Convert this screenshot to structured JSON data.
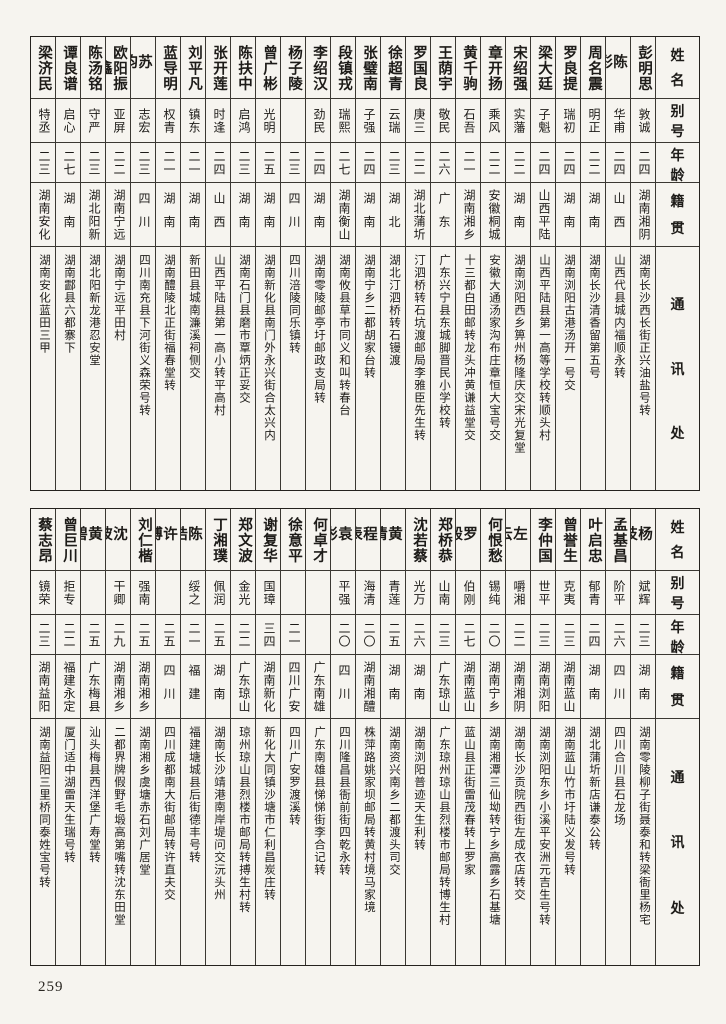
{
  "page_number": "259",
  "colors": {
    "paper": "#f6f4ef",
    "ink": "#1d1b18"
  },
  "column_headers": [
    "姓名",
    "别号",
    "年龄",
    "籍贯",
    "通讯处"
  ],
  "sections": [
    {
      "persons": [
        {
          "name": "彭明思",
          "alias": "敦诚",
          "age": "二四",
          "origin": "湖南湘阴",
          "address": "湖南长沙西长街正兴油盐号转"
        },
        {
          "name": "陈彩",
          "alias": "华甫",
          "age": "二四",
          "origin": "山西",
          "address": "山西代县城内福顺永转"
        },
        {
          "name": "周名震",
          "alias": "明正",
          "age": "二二",
          "origin": "湖南",
          "address": "湖南长沙清香留第五号"
        },
        {
          "name": "罗良提",
          "alias": "瑞初",
          "age": "二四",
          "origin": "湖南",
          "address": "湖南浏阳古港汤开一号交"
        },
        {
          "name": "梁大廷",
          "alias": "子魁",
          "age": "二四",
          "origin": "山西平陆",
          "address": "山西平陆县第一高等学校转顺头村"
        },
        {
          "name": "宋绍强",
          "alias": "实藩",
          "age": "二二",
          "origin": "湖南",
          "address": "湖南浏阳西乡箅州杨隆庆交宋光复堂"
        },
        {
          "name": "章开扬",
          "alias": "乘风",
          "age": "二二",
          "origin": "安徽桐城",
          "address": "安徽大通汤家沟布庄章恒大宝号交"
        },
        {
          "name": "黄千驹",
          "alias": "石吾",
          "age": "二一",
          "origin": "湖南湘乡",
          "address": "十三都白田邮转龙头冲黄谦益堂交"
        },
        {
          "name": "王荫宇",
          "alias": "敬民",
          "age": "二六",
          "origin": "广东",
          "address": "广东兴宁县东城脚晋民小学校转"
        },
        {
          "name": "罗国良",
          "alias": "庚三",
          "age": "二二",
          "origin": "湖北蒲圻",
          "address": "汀泗桥转石坑渡邮局李雅臣先生转"
        },
        {
          "name": "徐超青",
          "alias": "云瑞",
          "age": "二三",
          "origin": "湖北",
          "address": "湖北汀泗桥转石镘渡"
        },
        {
          "name": "张璧南",
          "alias": "子强",
          "age": "二四",
          "origin": "湖南",
          "address": "湖南宁乡二都胡家台转"
        },
        {
          "name": "段镇戎",
          "alias": "瑞熙",
          "age": "二七",
          "origin": "湖南衡山",
          "address": "湖南攸县草市同义和叫转春台"
        },
        {
          "name": "李绍汉",
          "alias": "劲民",
          "age": "二四",
          "origin": "湖南",
          "address": "湖南零陵邮亭圩邮政支局转"
        },
        {
          "name": "杨子陵",
          "alias": "",
          "age": "二三",
          "origin": "四川",
          "address": "四川涪陵同乐镇转"
        },
        {
          "name": "曾广彬",
          "alias": "光明",
          "age": "二五",
          "origin": "湖南",
          "address": "湖南新化县南门外永兴街合太兴内"
        },
        {
          "name": "陈扶中",
          "alias": "启鸿",
          "age": "二三",
          "origin": "湖南",
          "address": "湖南石门县磨市覃炳正妥交"
        },
        {
          "name": "张开莲",
          "alias": "时逢",
          "age": "二四",
          "origin": "山西",
          "address": "山西平陆县第一高小转平高村"
        },
        {
          "name": "刘平凡",
          "alias": "镇东",
          "age": "二一",
          "origin": "湖南",
          "address": "新田县城南濂溪祠侧交"
        },
        {
          "name": "蓝导明",
          "alias": "权青",
          "age": "二一",
          "origin": "湖南",
          "address": "湖南醴陵北正街福春堂转"
        },
        {
          "name": "苏钧",
          "alias": "志宏",
          "age": "二三",
          "origin": "四川",
          "address": "四川南充县下河街义森荣号转"
        },
        {
          "name": "欧阳振鑫",
          "alias": "亚屏",
          "age": "二二",
          "origin": "湖南宁远",
          "address": "湖南宁远平田村"
        },
        {
          "name": "陈汤铭",
          "alias": "守严",
          "age": "二三",
          "origin": "湖北阳新",
          "address": "湖北阳新龙港忍安堂"
        },
        {
          "name": "谭良谱",
          "alias": "启心",
          "age": "二七",
          "origin": "湖南",
          "address": "湖南酃县六都寨下"
        },
        {
          "name": "梁济民",
          "alias": "特丞",
          "age": "二三",
          "origin": "湖南安化",
          "address": "湖南安化蓝田三甲"
        }
      ]
    },
    {
      "persons": [
        {
          "name": "杨枝",
          "alias": "斌辉",
          "age": "二三",
          "origin": "湖南",
          "address": "湖南零陵柳子街聂泰和转梁衙里杨宅"
        },
        {
          "name": "孟基昌",
          "alias": "阶平",
          "age": "二六",
          "origin": "四川",
          "address": "四川合川县石龙场"
        },
        {
          "name": "叶启忠",
          "alias": "郁青",
          "age": "二四",
          "origin": "湖南",
          "address": "湖北蒲圻新店谦泰公转"
        },
        {
          "name": "曾誉生",
          "alias": "克夷",
          "age": "二三",
          "origin": "湖南蓝山",
          "address": "湖南蓝山竹市圩陆义发号转"
        },
        {
          "name": "李仲国",
          "alias": "世平",
          "age": "二三",
          "origin": "湖南浏阳",
          "address": "湖南浏阳东乡小溪平安洲元吉生号转"
        },
        {
          "name": "左云",
          "alias": "嚼湘",
          "age": "二二",
          "origin": "湖南湘阴",
          "address": "湖南长沙贡院西街左成衣店转交"
        },
        {
          "name": "何恨愁",
          "alias": "锡纯",
          "age": "二〇",
          "origin": "湖南宁乡",
          "address": "湖南湘潭三仙坳转宁乡高露乡石基塘"
        },
        {
          "name": "罗毅",
          "alias": "伯刚",
          "age": "二七",
          "origin": "湖南蓝山",
          "address": "蓝山县正街雷茂春转上罗家"
        },
        {
          "name": "郑桥恭",
          "alias": "山南",
          "age": "二三",
          "origin": "广东琼山",
          "address": "广东琼州琼山县烈楼市邮局转博生村"
        },
        {
          "name": "沈若蔡",
          "alias": "光万",
          "age": "二六",
          "origin": "湖南",
          "address": "湖南浏阳普迹天生利转"
        },
        {
          "name": "黄清",
          "alias": "青莲",
          "age": "二五",
          "origin": "湖南",
          "address": "湖南资兴南乡二都渡头司交"
        },
        {
          "name": "程表",
          "alias": "海清",
          "age": "二〇",
          "origin": "湖南湘醴",
          "address": "株萍路姚家坝邮局转黄村境马家境"
        },
        {
          "name": "袁彬",
          "alias": "平强",
          "age": "二〇",
          "origin": "四川",
          "address": "四川隆昌县衙前街四乾永转"
        },
        {
          "name": "何卓才",
          "alias": "",
          "age": "",
          "origin": "广东南雄",
          "address": "广东南雄县悌悌街李合记转"
        },
        {
          "name": "徐意平",
          "alias": "",
          "age": "二一",
          "origin": "四川广安",
          "address": "四川广安罗渡溪转"
        },
        {
          "name": "谢复华",
          "alias": "国璋",
          "age": "三四",
          "origin": "湖南新化",
          "address": "新化大同镇沙塘市仁利昌炭庄转"
        },
        {
          "name": "郑文波",
          "alias": "金光",
          "age": "二二",
          "origin": "广东琼山",
          "address": "琼州琼山县烈楼市邮局转搏生村转"
        },
        {
          "name": "丁湘璞",
          "alias": "佩润",
          "age": "二五",
          "origin": "湖南",
          "address": "湖南长沙靖港南岸堤问交沅头州"
        },
        {
          "name": "陈皓",
          "alias": "绥之",
          "age": "二一",
          "origin": "福建",
          "address": "福建塘城县后街德丰号转"
        },
        {
          "name": "许博",
          "alias": "",
          "age": "二五",
          "origin": "四川",
          "address": "四川成都南大街邮局转许直夫交"
        },
        {
          "name": "刘仁楷",
          "alias": "强南",
          "age": "二五",
          "origin": "湖南湘乡",
          "address": "湖南湘乡虞塘赤石刘广居堂"
        },
        {
          "name": "沈波",
          "alias": "干卿",
          "age": "二九",
          "origin": "湖南湘乡",
          "address": "二都界牌假野毛塅高第嘴转沈东田堂"
        },
        {
          "name": "黄碧",
          "alias": "",
          "age": "二五",
          "origin": "广东梅县",
          "address": "汕头梅县西洋堡广寿堂转"
        },
        {
          "name": "曾巨川",
          "alias": "拒专",
          "age": "二二",
          "origin": "福建永定",
          "address": "厦门适中湖雷天生瑞号转"
        },
        {
          "name": "蔡志昂",
          "alias": "镜荣",
          "age": "二三",
          "origin": "湖南益阳",
          "address": "湖南益阳三里桥同泰姓宝号转"
        }
      ]
    }
  ]
}
